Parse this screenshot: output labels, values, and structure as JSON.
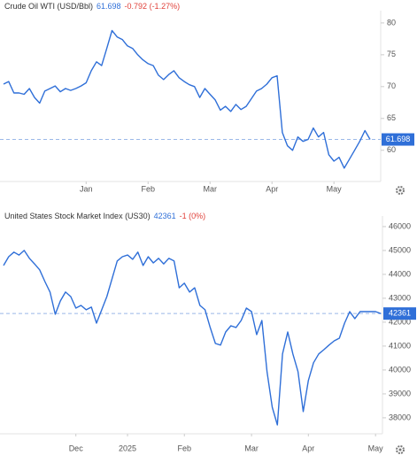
{
  "chart_data": [
    {
      "type": "line",
      "title": "Crude Oil WTI (USD/Bbl)",
      "change": "-0.792 (-1.27%)",
      "color": "#2f6fd8",
      "values": [
        70.4,
        70.8,
        69.0,
        69.0,
        68.8,
        69.7,
        68.3,
        67.4,
        69.3,
        69.7,
        70.1,
        69.2,
        69.7,
        69.4,
        69.7,
        70.1,
        70.6,
        72.5,
        73.9,
        73.3,
        76.0,
        78.8,
        77.8,
        77.4,
        76.4,
        76.0,
        75.0,
        74.2,
        73.6,
        73.3,
        71.8,
        71.1,
        71.9,
        72.5,
        71.4,
        70.8,
        70.3,
        70.0,
        68.3,
        69.7,
        68.8,
        67.9,
        66.3,
        66.9,
        66.1,
        67.2,
        66.4,
        66.9,
        68.1,
        69.3,
        69.7,
        70.4,
        71.4,
        71.7,
        62.8,
        60.7,
        60.0,
        62.1,
        61.4,
        61.7,
        63.5,
        62.1,
        62.8,
        59.3,
        58.3,
        58.9,
        57.2,
        58.6,
        60.0,
        61.4,
        63.1,
        61.698
      ],
      "xticks": [
        {
          "value": 16,
          "label": "Jan"
        },
        {
          "value": 28,
          "label": "Feb"
        },
        {
          "value": 40,
          "label": "Mar"
        },
        {
          "value": 52,
          "label": "Apr"
        },
        {
          "value": 64,
          "label": "May"
        }
      ],
      "ylim": [
        55.1,
        81.1
      ],
      "yticks": [
        60,
        65,
        70,
        75,
        80
      ]
    },
    {
      "type": "line",
      "title": "United States Stock Market Index (US30)",
      "change": "-1 (0%)",
      "color": "#2f6fd8",
      "values": [
        44370,
        44740,
        44930,
        44810,
        45000,
        44670,
        44440,
        44190,
        43700,
        43260,
        42330,
        42890,
        43260,
        43070,
        42590,
        42700,
        42520,
        42630,
        41960,
        42520,
        43070,
        43810,
        44560,
        44740,
        44810,
        44630,
        44930,
        44370,
        44740,
        44480,
        44670,
        44440,
        44670,
        44560,
        43440,
        43630,
        43260,
        43440,
        42700,
        42520,
        41780,
        41110,
        41040,
        41590,
        41850,
        41780,
        42070,
        42590,
        42440,
        41480,
        42070,
        39930,
        38440,
        37700,
        40670,
        41590,
        40670,
        39930,
        38260,
        39560,
        40300,
        40670,
        40850,
        41040,
        41220,
        41330,
        41960,
        42440,
        42150,
        42440,
        42440,
        42440,
        42440,
        42361
      ],
      "xticks": [
        {
          "value": 14,
          "label": "Dec"
        },
        {
          "value": 24,
          "label": "2025"
        },
        {
          "value": 35,
          "label": "Feb"
        },
        {
          "value": 48,
          "label": "Mar"
        },
        {
          "value": 59,
          "label": "Apr"
        },
        {
          "value": 72,
          "label": "May"
        }
      ],
      "ylim": [
        37330,
        46220
      ],
      "yticks": [
        38000,
        39000,
        40000,
        41000,
        42000,
        43000,
        44000,
        45000,
        46000
      ]
    }
  ]
}
